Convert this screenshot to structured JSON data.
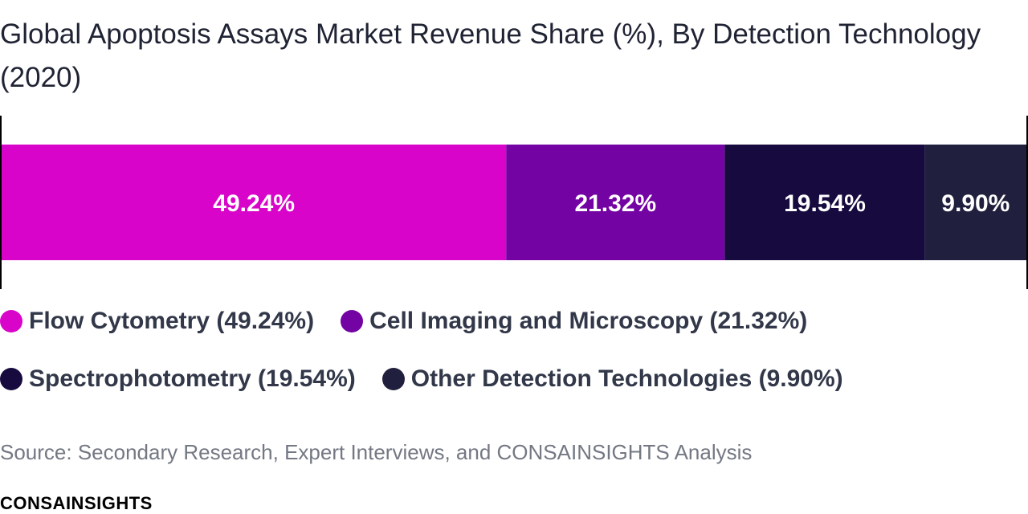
{
  "title": "Global Apoptosis Assays Market Revenue Share (%), By Detection Technology (2020)",
  "chart_data": {
    "type": "bar",
    "orientation": "horizontal-stacked-100",
    "title": "Global Apoptosis Assays Market Revenue Share (%), By Detection Technology (2020)",
    "unit": "%",
    "grid": false,
    "legend_position": "bottom",
    "series": [
      {
        "name": "Flow Cytometry",
        "value": 49.24,
        "label": "49.24%",
        "color": "#d904c9"
      },
      {
        "name": "Cell Imaging and Microscopy",
        "value": 21.32,
        "label": "21.32%",
        "color": "#7303a3"
      },
      {
        "name": "Spectrophotometry",
        "value": 19.54,
        "label": "19.54%",
        "color": "#170a3f"
      },
      {
        "name": "Other Detection Technologies",
        "value": 9.9,
        "label": "9.90%",
        "color": "#20203e"
      }
    ]
  },
  "legend": [
    {
      "label": "Flow Cytometry (49.24%)",
      "color": "#d904c9"
    },
    {
      "label": "Cell Imaging and Microscopy (21.32%)",
      "color": "#7303a3"
    },
    {
      "label": "Spectrophotometry (19.54%)",
      "color": "#170a3f"
    },
    {
      "label": "Other Detection Technologies (9.90%)",
      "color": "#20203e"
    }
  ],
  "source": "Source: Secondary Research, Expert Interviews, and CONSAINSIGHTS Analysis",
  "brand": "CONSAINSIGHTS"
}
